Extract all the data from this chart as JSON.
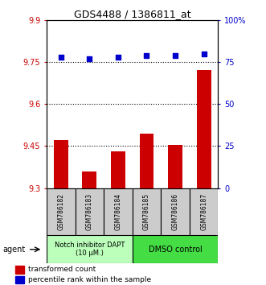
{
  "title": "GDS4488 / 1386811_at",
  "samples": [
    "GSM786182",
    "GSM786183",
    "GSM786184",
    "GSM786185",
    "GSM786186",
    "GSM786187"
  ],
  "bar_values": [
    9.47,
    9.36,
    9.43,
    9.495,
    9.455,
    9.72
  ],
  "percentile_values": [
    78,
    77,
    78,
    79,
    79,
    80
  ],
  "ylim_left": [
    9.3,
    9.9
  ],
  "ylim_right": [
    0,
    100
  ],
  "yticks_left": [
    9.3,
    9.45,
    9.6,
    9.75,
    9.9
  ],
  "yticks_right": [
    0,
    25,
    50,
    75,
    100
  ],
  "ytick_labels_left": [
    "9.3",
    "9.45",
    "9.6",
    "9.75",
    "9.9"
  ],
  "ytick_labels_right": [
    "0",
    "25",
    "50",
    "75",
    "100%"
  ],
  "hlines": [
    9.45,
    9.6,
    9.75
  ],
  "bar_color": "#cc0000",
  "dot_color": "#0000cc",
  "bar_width": 0.5,
  "group1_label": "Notch inhibitor DAPT\n(10 μM.)",
  "group2_label": "DMSO control",
  "group1_color": "#bbffbb",
  "group2_color": "#44dd44",
  "agent_label": "agent",
  "legend_bar_label": "transformed count",
  "legend_dot_label": "percentile rank within the sample",
  "ylabel_left_color": "#cc0000",
  "ylabel_right_color": "#0000cc",
  "title_fontsize": 9,
  "tick_fontsize": 7,
  "sample_fontsize": 5.5,
  "group_fontsize1": 6,
  "group_fontsize2": 7,
  "legend_fontsize": 6.5,
  "agent_fontsize": 7
}
